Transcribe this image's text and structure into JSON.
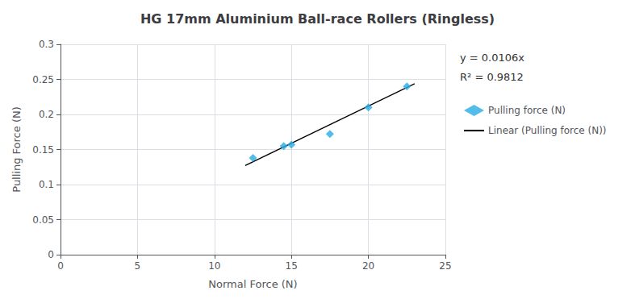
{
  "chart_data": {
    "type": "scatter",
    "title": "HG 17mm Aluminium Ball-race Rollers (Ringless)",
    "xlabel": "Normal Force (N)",
    "ylabel": "Pulling Force (N)",
    "series": [
      {
        "name": "Pulling force (N)",
        "type": "scatter",
        "marker": "diamond",
        "color": "#29ABE2",
        "x": [
          12.5,
          14.5,
          15.0,
          17.5,
          20.0,
          22.5
        ],
        "values": [
          0.138,
          0.155,
          0.157,
          0.172,
          0.21,
          0.24
        ]
      },
      {
        "name": "Linear (Pulling force (N))",
        "type": "line",
        "color": "black",
        "line_style": "solid",
        "x": [
          12.0,
          23.0
        ],
        "values": [
          0.1272,
          0.2438
        ]
      }
    ],
    "xlim": [
      0,
      25
    ],
    "ylim": [
      0,
      0.3
    ],
    "xticks": [
      0,
      5,
      10,
      15,
      20,
      25
    ],
    "yticks": [
      0,
      0.05,
      0.1,
      0.15,
      0.2,
      0.25,
      0.3
    ],
    "grid": true,
    "legend": "right",
    "annotations": [
      "y = 0.0106x",
      "R² = 0.9812"
    ]
  }
}
